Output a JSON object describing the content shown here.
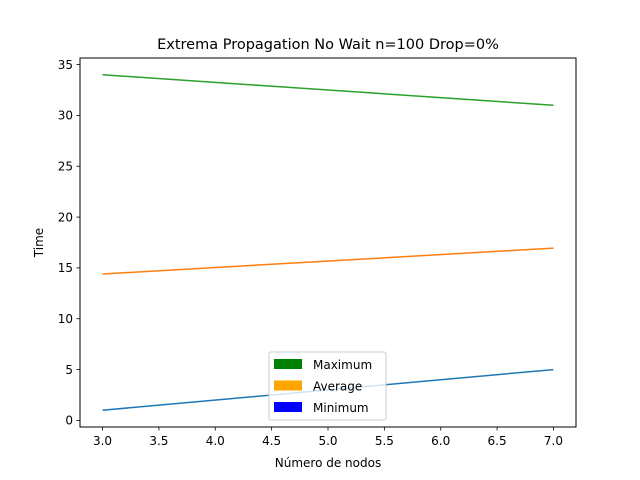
{
  "chart_data": {
    "type": "line",
    "title": "Extrema Propagation No Wait n=100 Drop=0%",
    "xlabel": "Número de nodos",
    "ylabel": "Time",
    "x": [
      3,
      7
    ],
    "xlim": [
      2.8,
      7.2
    ],
    "ylim": [
      -0.65,
      35.65
    ],
    "xticks": [
      3.0,
      3.5,
      4.0,
      4.5,
      5.0,
      5.5,
      6.0,
      6.5,
      7.0
    ],
    "xtick_labels": [
      "3.0",
      "3.5",
      "4.0",
      "4.5",
      "5.0",
      "5.5",
      "6.0",
      "6.5",
      "7.0"
    ],
    "yticks": [
      0,
      5,
      10,
      15,
      20,
      25,
      30,
      35
    ],
    "ytick_labels": [
      "0",
      "5",
      "10",
      "15",
      "20",
      "25",
      "30",
      "35"
    ],
    "grid": false,
    "legend_position": "lower-center",
    "series": [
      {
        "color": "#2ca02c",
        "values": [
          34,
          31
        ]
      },
      {
        "color": "#ff7f0e",
        "values": [
          14.4,
          16.95
        ]
      },
      {
        "color": "#1f77b4",
        "values": [
          1,
          5
        ]
      }
    ],
    "legend": [
      {
        "label": "Maximum",
        "color": "#008000"
      },
      {
        "label": "Average",
        "color": "#ffa500"
      },
      {
        "label": "Minimum",
        "color": "#0000ff"
      }
    ]
  }
}
